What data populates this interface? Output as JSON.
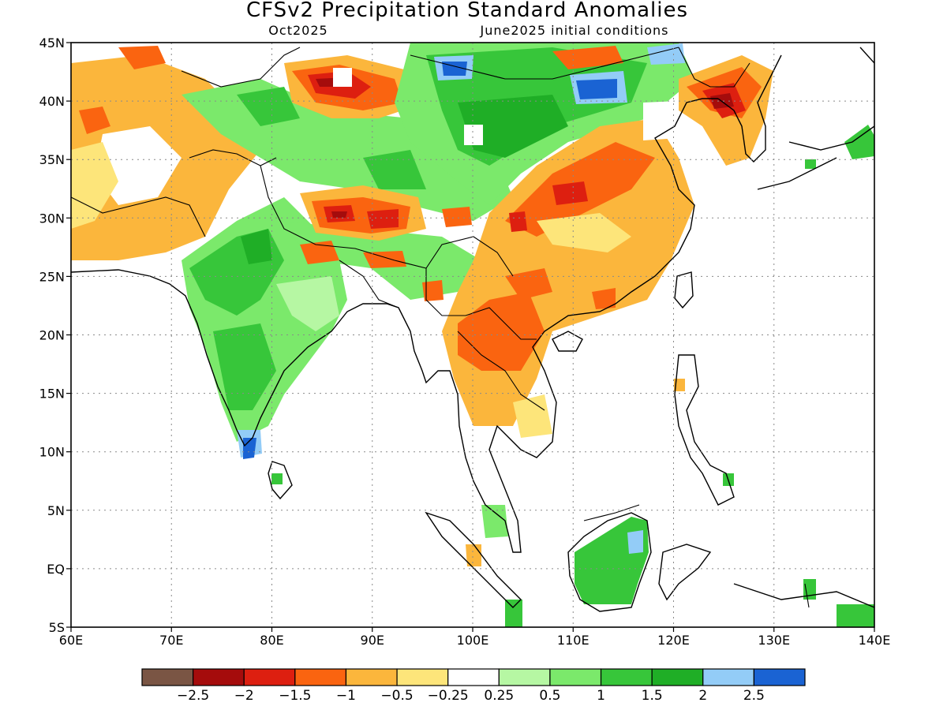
{
  "title": "CFSv2 Precipitation Standard Anomalies",
  "subtitle_left": "Oct2025",
  "subtitle_right": "June2025 initial conditions",
  "x_ticks": [
    "60E",
    "70E",
    "80E",
    "90E",
    "100E",
    "110E",
    "120E",
    "130E",
    "140E"
  ],
  "y_ticks": [
    "45N",
    "40N",
    "35N",
    "30N",
    "25N",
    "20N",
    "15N",
    "10N",
    "5N",
    "EQ",
    "5S"
  ],
  "extent": {
    "lon": [
      60,
      140
    ],
    "lat": [
      -5,
      45
    ]
  },
  "colorbar": {
    "colors": [
      "#7a5544",
      "#a50c0c",
      "#dd1f10",
      "#fa6410",
      "#fbb63c",
      "#fde57a",
      "#ffffff",
      "#b6f7a3",
      "#7be96b",
      "#37c63a",
      "#1fae26",
      "#93ccf7",
      "#1a63d3"
    ],
    "labels": [
      "−2.5",
      "−2",
      "−1.5",
      "−1",
      "−0.5",
      "−0.25",
      "0.25",
      "0.5",
      "1",
      "1.5",
      "2",
      "2.5"
    ]
  }
}
